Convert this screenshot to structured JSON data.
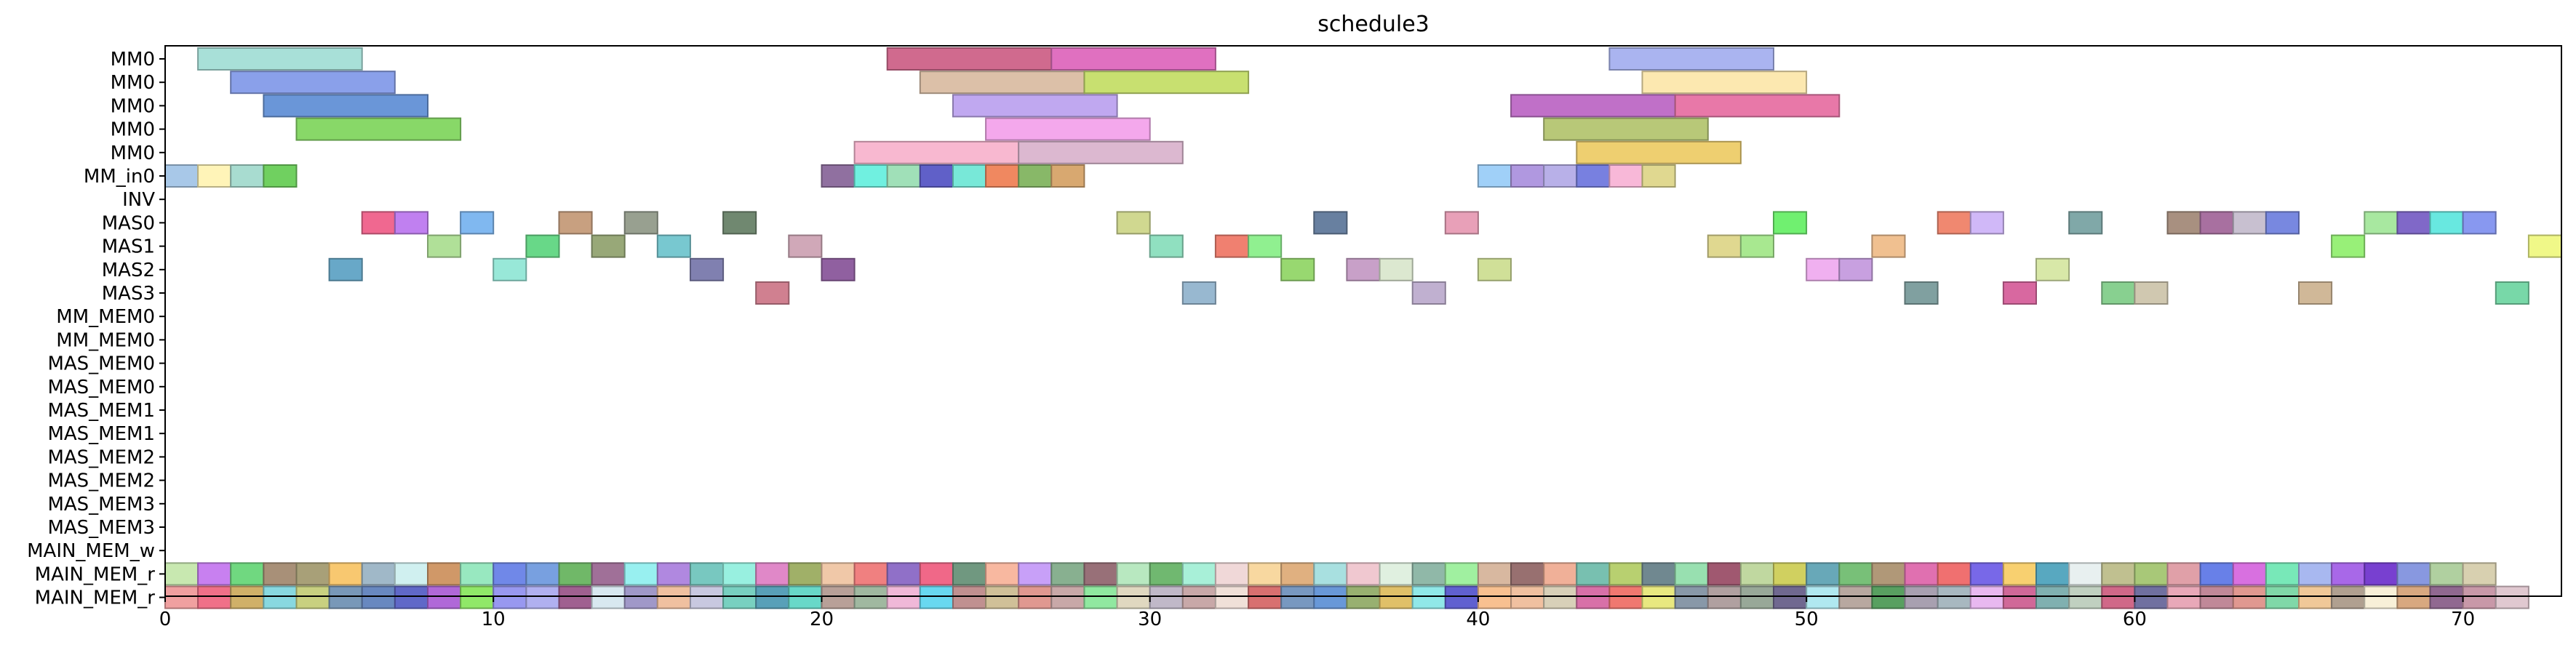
{
  "chart_data": {
    "type": "gantt",
    "title": "schedule3",
    "xlabel": "",
    "ylabel": "",
    "xlim": [
      0,
      73
    ],
    "x_ticks": [
      0,
      10,
      20,
      30,
      40,
      50,
      60,
      70
    ],
    "x_tick_labels": [
      "0",
      "10",
      "20",
      "30",
      "40",
      "50",
      "60",
      "70"
    ],
    "grid": false,
    "legend": "none",
    "rows": [
      "MM0",
      "MM0",
      "MM0",
      "MM0",
      "MM0",
      "MM_in0",
      "INV",
      "MAS0",
      "MAS1",
      "MAS2",
      "MAS3",
      "MM_MEM0",
      "MM_MEM0",
      "MAS_MEM0",
      "MAS_MEM0",
      "MAS_MEM1",
      "MAS_MEM1",
      "MAS_MEM2",
      "MAS_MEM2",
      "MAS_MEM3",
      "MAS_MEM3",
      "MAIN_MEM_w",
      "MAIN_MEM_r",
      "MAIN_MEM_r"
    ],
    "tasks": [
      {
        "row": 0,
        "start": 1,
        "end": 6,
        "color": "#a8e0d8"
      },
      {
        "row": 0,
        "start": 22,
        "end": 27,
        "color": "#d06a8e"
      },
      {
        "row": 0,
        "start": 27,
        "end": 32,
        "color": "#e070c0"
      },
      {
        "row": 0,
        "start": 44,
        "end": 49,
        "color": "#aab4f0"
      },
      {
        "row": 1,
        "start": 2,
        "end": 7,
        "color": "#8aa0ea"
      },
      {
        "row": 1,
        "start": 23,
        "end": 28,
        "color": "#dcc0a8"
      },
      {
        "row": 1,
        "start": 28,
        "end": 33,
        "color": "#c8e070"
      },
      {
        "row": 1,
        "start": 45,
        "end": 50,
        "color": "#fce8b0"
      },
      {
        "row": 2,
        "start": 3,
        "end": 8,
        "color": "#6a96d8"
      },
      {
        "row": 2,
        "start": 24,
        "end": 29,
        "color": "#c0a8f0"
      },
      {
        "row": 2,
        "start": 41,
        "end": 46,
        "color": "#c070c8"
      },
      {
        "row": 2,
        "start": 46,
        "end": 51,
        "color": "#e878a8"
      },
      {
        "row": 3,
        "start": 4,
        "end": 9,
        "color": "#88d868"
      },
      {
        "row": 3,
        "start": 25,
        "end": 30,
        "color": "#f4a8ec"
      },
      {
        "row": 3,
        "start": 42,
        "end": 47,
        "color": "#b8c878"
      },
      {
        "row": 4,
        "start": 21,
        "end": 26,
        "color": "#f8b8d0"
      },
      {
        "row": 4,
        "start": 26,
        "end": 31,
        "color": "#dcb8d0"
      },
      {
        "row": 4,
        "start": 43,
        "end": 48,
        "color": "#eecf70"
      },
      {
        "row": 5,
        "start": 0,
        "end": 1,
        "color": "#a8c8e8"
      },
      {
        "row": 5,
        "start": 1,
        "end": 2,
        "color": "#fff4b8"
      },
      {
        "row": 5,
        "start": 2,
        "end": 3,
        "color": "#a8dcd0"
      },
      {
        "row": 5,
        "start": 3,
        "end": 4,
        "color": "#70d060"
      },
      {
        "row": 5,
        "start": 20,
        "end": 21,
        "color": "#9070a0"
      },
      {
        "row": 5,
        "start": 21,
        "end": 22,
        "color": "#70f0e0"
      },
      {
        "row": 5,
        "start": 22,
        "end": 23,
        "color": "#a0e0b8"
      },
      {
        "row": 5,
        "start": 23,
        "end": 24,
        "color": "#6060c8"
      },
      {
        "row": 5,
        "start": 24,
        "end": 25,
        "color": "#78e8d8"
      },
      {
        "row": 5,
        "start": 25,
        "end": 26,
        "color": "#f08860"
      },
      {
        "row": 5,
        "start": 26,
        "end": 27,
        "color": "#88b868"
      },
      {
        "row": 5,
        "start": 27,
        "end": 28,
        "color": "#d8a870"
      },
      {
        "row": 5,
        "start": 40,
        "end": 41,
        "color": "#a0d0f8"
      },
      {
        "row": 5,
        "start": 41,
        "end": 42,
        "color": "#b098e0"
      },
      {
        "row": 5,
        "start": 42,
        "end": 43,
        "color": "#b8b0e8"
      },
      {
        "row": 5,
        "start": 43,
        "end": 44,
        "color": "#7880e0"
      },
      {
        "row": 5,
        "start": 44,
        "end": 45,
        "color": "#f8b8d8"
      },
      {
        "row": 5,
        "start": 45,
        "end": 46,
        "color": "#e0d890"
      },
      {
        "row": 7,
        "start": 6,
        "end": 7,
        "color": "#f06890"
      },
      {
        "row": 7,
        "start": 7,
        "end": 8,
        "color": "#c080f0"
      },
      {
        "row": 7,
        "start": 9,
        "end": 10,
        "color": "#80b8f0"
      },
      {
        "row": 7,
        "start": 12,
        "end": 13,
        "color": "#c8a080"
      },
      {
        "row": 7,
        "start": 14,
        "end": 15,
        "color": "#98a090"
      },
      {
        "row": 7,
        "start": 17,
        "end": 18,
        "color": "#708870"
      },
      {
        "row": 7,
        "start": 29,
        "end": 30,
        "color": "#d0d890"
      },
      {
        "row": 7,
        "start": 35,
        "end": 36,
        "color": "#6880a0"
      },
      {
        "row": 7,
        "start": 39,
        "end": 40,
        "color": "#e8a0b8"
      },
      {
        "row": 7,
        "start": 49,
        "end": 50,
        "color": "#70f070"
      },
      {
        "row": 7,
        "start": 54,
        "end": 55,
        "color": "#f08870"
      },
      {
        "row": 7,
        "start": 55,
        "end": 56,
        "color": "#d0b8f8"
      },
      {
        "row": 7,
        "start": 58,
        "end": 59,
        "color": "#80a8a8"
      },
      {
        "row": 7,
        "start": 61,
        "end": 62,
        "color": "#a89080"
      },
      {
        "row": 7,
        "start": 62,
        "end": 63,
        "color": "#a870a0"
      },
      {
        "row": 7,
        "start": 63,
        "end": 64,
        "color": "#c8c0d0"
      },
      {
        "row": 7,
        "start": 64,
        "end": 65,
        "color": "#7888e0"
      },
      {
        "row": 7,
        "start": 67,
        "end": 68,
        "color": "#a8e8a0"
      },
      {
        "row": 7,
        "start": 68,
        "end": 69,
        "color": "#8068c8"
      },
      {
        "row": 7,
        "start": 69,
        "end": 70,
        "color": "#68e8e0"
      },
      {
        "row": 7,
        "start": 70,
        "end": 71,
        "color": "#8898f0"
      },
      {
        "row": 8,
        "start": 8,
        "end": 9,
        "color": "#b0e098"
      },
      {
        "row": 8,
        "start": 11,
        "end": 12,
        "color": "#68d888"
      },
      {
        "row": 8,
        "start": 13,
        "end": 14,
        "color": "#98a878"
      },
      {
        "row": 8,
        "start": 15,
        "end": 16,
        "color": "#78c8d0"
      },
      {
        "row": 8,
        "start": 19,
        "end": 20,
        "color": "#d0a8b8"
      },
      {
        "row": 8,
        "start": 30,
        "end": 31,
        "color": "#90e0c0"
      },
      {
        "row": 8,
        "start": 32,
        "end": 33,
        "color": "#f08070"
      },
      {
        "row": 8,
        "start": 33,
        "end": 34,
        "color": "#90f090"
      },
      {
        "row": 8,
        "start": 47,
        "end": 48,
        "color": "#e0d890"
      },
      {
        "row": 8,
        "start": 48,
        "end": 49,
        "color": "#a8e890"
      },
      {
        "row": 8,
        "start": 52,
        "end": 53,
        "color": "#f0c090"
      },
      {
        "row": 8,
        "start": 66,
        "end": 67,
        "color": "#98f078"
      },
      {
        "row": 8,
        "start": 72,
        "end": 73,
        "color": "#f0f888"
      },
      {
        "row": 9,
        "start": 5,
        "end": 6,
        "color": "#68a8c8"
      },
      {
        "row": 9,
        "start": 10,
        "end": 11,
        "color": "#98e8d8"
      },
      {
        "row": 9,
        "start": 16,
        "end": 17,
        "color": "#8080b0"
      },
      {
        "row": 9,
        "start": 20,
        "end": 21,
        "color": "#9060a0"
      },
      {
        "row": 9,
        "start": 34,
        "end": 35,
        "color": "#98d870"
      },
      {
        "row": 9,
        "start": 36,
        "end": 37,
        "color": "#c8a0c8"
      },
      {
        "row": 9,
        "start": 37,
        "end": 38,
        "color": "#dce8d0"
      },
      {
        "row": 9,
        "start": 40,
        "end": 41,
        "color": "#d0e098"
      },
      {
        "row": 9,
        "start": 50,
        "end": 51,
        "color": "#f0b0f0"
      },
      {
        "row": 9,
        "start": 51,
        "end": 52,
        "color": "#c8a0e0"
      },
      {
        "row": 9,
        "start": 57,
        "end": 58,
        "color": "#d8e8a8"
      },
      {
        "row": 10,
        "start": 18,
        "end": 19,
        "color": "#d08090"
      },
      {
        "row": 10,
        "start": 31,
        "end": 32,
        "color": "#98b8d0"
      },
      {
        "row": 10,
        "start": 38,
        "end": 39,
        "color": "#c0b0d0"
      },
      {
        "row": 10,
        "start": 53,
        "end": 54,
        "color": "#80a0a0"
      },
      {
        "row": 10,
        "start": 56,
        "end": 57,
        "color": "#d868a0"
      },
      {
        "row": 10,
        "start": 59,
        "end": 60,
        "color": "#88d090"
      },
      {
        "row": 10,
        "start": 60,
        "end": 61,
        "color": "#d0c8b0"
      },
      {
        "row": 10,
        "start": 65,
        "end": 66,
        "color": "#d0b898"
      },
      {
        "row": 10,
        "start": 71,
        "end": 72,
        "color": "#78d8a8"
      }
    ],
    "row22_colors": [
      "#c8e8b0",
      "#c880f0",
      "#70d880",
      "#a89078",
      "#a8a078",
      "#f8c870",
      "#a0b8c8",
      "#d0f0f0",
      "#d09868",
      "#98e8c0",
      "#7088e8",
      "#78a0e0",
      "#70b868",
      "#a07098",
      "#98f0f0",
      "#b088e0",
      "#78c8c0",
      "#98f0e0",
      "#e088c8",
      "#a0b068",
      "#f0c8a8",
      "#f08080",
      "#9070c8",
      "#f06888",
      "#709880",
      "#f8b8a0",
      "#c8a0f8",
      "#88b090",
      "#987078",
      "#b8e8c0",
      "#70b870",
      "#a8f0d8",
      "#f0d8d8",
      "#f8d8a0",
      "#e0b080",
      "#a8e0e0",
      "#f0c8d0",
      "#e0f0e0",
      "#90b8a8",
      "#a0f0a0",
      "#d8b8a0",
      "#987070",
      "#f0b098",
      "#78c0b0",
      "#b8d070",
      "#708890",
      "#98e0b0",
      "#a05870",
      "#c0d8a0",
      "#d0d060",
      "#68a8b8",
      "#78c078",
      "#b09878",
      "#e070b0",
      "#f07070",
      "#7868e8",
      "#f8d070",
      "#58a8c0",
      "#e8f0f0",
      "#c0c090",
      "#a8c878",
      "#e0a0a8",
      "#6880e8",
      "#d870e0",
      "#78e8b8",
      "#a8b8f0",
      "#a868e8",
      "#7840d0",
      "#8898e0",
      "#b0d0a0",
      "#d8d0b0"
    ],
    "row23_colors": [
      "#f0a0a0",
      "#f07088",
      "#d0b068",
      "#88d8e0",
      "#c8d080",
      "#7898b8",
      "#6888c0",
      "#6068c8",
      "#b068d8",
      "#90e868",
      "#9898f0",
      "#b0b0f0",
      "#a06090",
      "#d8e8f0",
      "#a098c8",
      "#f0c0a0",
      "#c8c8e0",
      "#78d0c0",
      "#58a0b8",
      "#68d8c8",
      "#b8a098",
      "#a0b8a0",
      "#f0b8d8",
      "#68d8f0",
      "#c09090",
      "#d0c098",
      "#e09890",
      "#c8a8a8",
      "#90e8a0",
      "#e0d8c0",
      "#c0b8c8",
      "#c8a8a8",
      "#f0e0d8",
      "#d87070",
      "#7898c0",
      "#6898d8",
      "#98b070",
      "#e0c068",
      "#90e8e8",
      "#6060d0",
      "#f8c090",
      "#f0c0a0",
      "#d8d0b8",
      "#d870a8",
      "#f07870",
      "#e8e880",
      "#8898a8",
      "#b0a0a0",
      "#98a898",
      "#706890",
      "#b0e8f0",
      "#b8a8a0",
      "#58a060",
      "#a8a0b0",
      "#a8b8c0",
      "#e8b8f0",
      "#d06898",
      "#80b0b0",
      "#c0d0c0",
      "#d06888",
      "#7070a0",
      "#e8a8b8",
      "#c08898",
      "#e09890",
      "#80d8a8",
      "#f0c898",
      "#b0a090",
      "#f8f0d8",
      "#d8a880",
      "#906890",
      "#c898a8",
      "#e0c8d0"
    ]
  }
}
